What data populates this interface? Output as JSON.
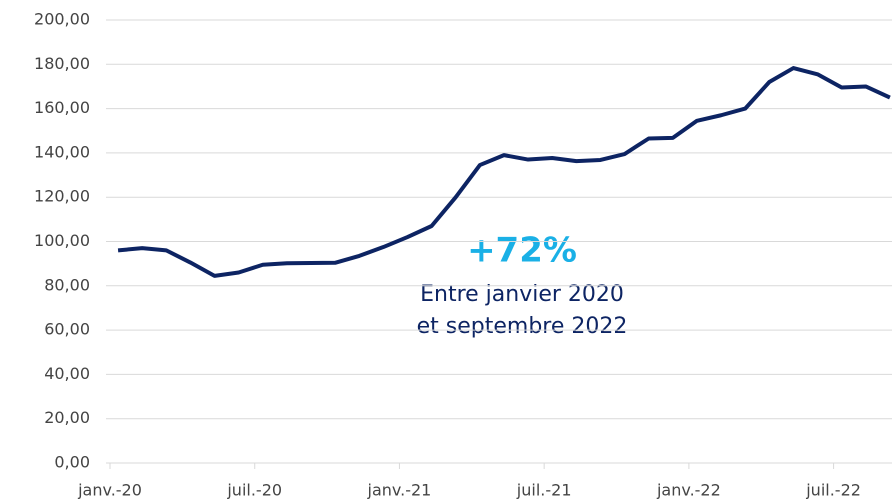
{
  "chart_data": {
    "type": "line",
    "categories": [
      "janv.-20",
      null,
      null,
      null,
      null,
      null,
      "juil.-20",
      null,
      null,
      null,
      null,
      null,
      "janv.-21",
      null,
      null,
      null,
      null,
      null,
      "juil.-21",
      null,
      null,
      null,
      null,
      null,
      "janv.-22",
      null,
      null,
      null,
      null,
      null,
      "juil.-22",
      null,
      null
    ],
    "series": [
      {
        "color": "#0d2463",
        "values": [
          96,
          97,
          96,
          90.5,
          84.5,
          86,
          89.5,
          90.2,
          90.3,
          90.4,
          93.5,
          97.5,
          102,
          107,
          120,
          134.5,
          139,
          137,
          137.7,
          136.3,
          136.8,
          139.5,
          146.5,
          146.8,
          154.5,
          157,
          160,
          172,
          178.3,
          175.5,
          169.5,
          170,
          165
        ]
      }
    ],
    "ylim": [
      0,
      200
    ],
    "yticks": [
      {
        "value": 0,
        "label": "0,00"
      },
      {
        "value": 20,
        "label": "20,00"
      },
      {
        "value": 40,
        "label": "40,00"
      },
      {
        "value": 60,
        "label": "60,00"
      },
      {
        "value": 80,
        "label": "80,00"
      },
      {
        "value": 100,
        "label": "100,00"
      },
      {
        "value": 120,
        "label": "120,00"
      },
      {
        "value": 140,
        "label": "140,00"
      },
      {
        "value": 160,
        "label": "160,00"
      },
      {
        "value": 180,
        "label": "180,00"
      },
      {
        "value": 200,
        "label": "200,00"
      }
    ],
    "grid": true,
    "annotations": [
      {
        "text": "+72%",
        "color": "#1ab0e6"
      },
      {
        "text": "Entre janvier 2020"
      },
      {
        "text": "et septembre 2022"
      }
    ]
  }
}
